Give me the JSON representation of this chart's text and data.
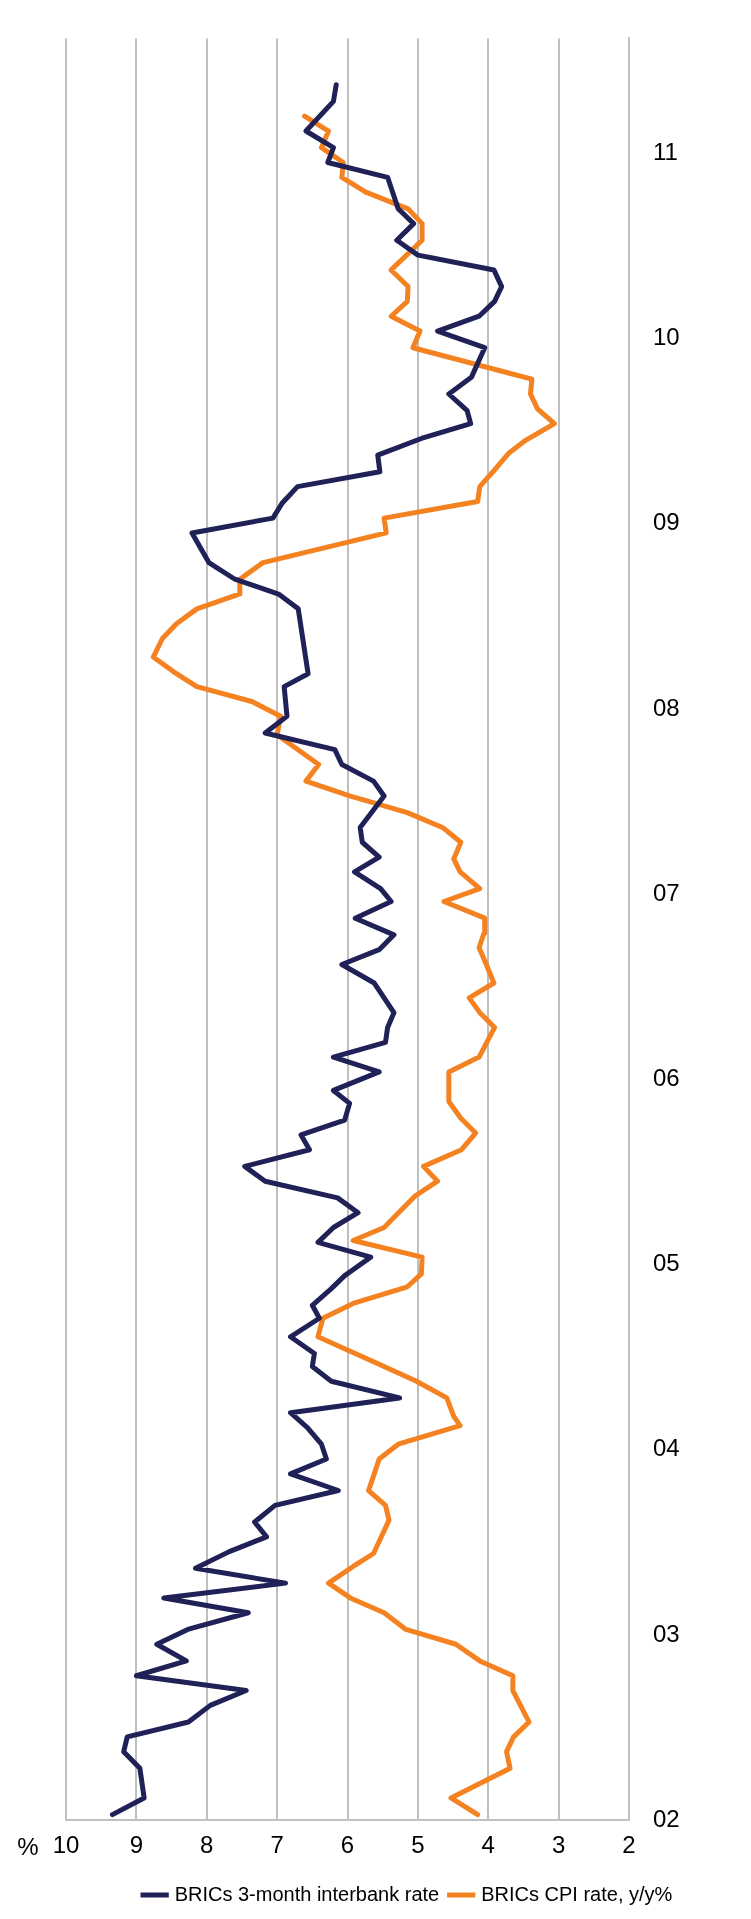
{
  "chart_data": {
    "type": "line",
    "xlabel": "%",
    "ylim": [
      2002,
      2011.62
    ],
    "xlim": [
      10,
      2
    ],
    "yticks": [
      {
        "value": 2002,
        "label": "02"
      },
      {
        "value": 2003,
        "label": "03"
      },
      {
        "value": 2004,
        "label": "04"
      },
      {
        "value": 2005,
        "label": "05"
      },
      {
        "value": 2006,
        "label": "06"
      },
      {
        "value": 2007,
        "label": "07"
      },
      {
        "value": 2008,
        "label": "08"
      },
      {
        "value": 2009,
        "label": "09"
      },
      {
        "value": 2010,
        "label": "10"
      },
      {
        "value": 2011,
        "label": "11"
      }
    ],
    "xticks": [
      10,
      9,
      8,
      7,
      6,
      5,
      4,
      3,
      2
    ],
    "grid": "x",
    "legend": "bottom",
    "marker": "none",
    "series": [
      {
        "name": "BRICs 3-month interbank rate",
        "color": "#1f2157",
        "values": [
          2002.03,
          2002.12,
          2002.28,
          2002.37,
          2002.45,
          2002.53,
          2002.62,
          2002.7,
          2002.78,
          2002.86,
          2002.95,
          2003.03,
          2003.12,
          2003.2,
          2003.28,
          2003.36,
          2003.45,
          2003.53,
          2003.61,
          2003.7,
          2003.78,
          2003.87,
          2003.95,
          2004.03,
          2004.12,
          2004.2,
          2004.28,
          2004.37,
          2004.45,
          2004.52,
          2004.61,
          2004.71,
          2004.78,
          2004.87,
          2004.94,
          2005.04,
          2005.12,
          2005.2,
          2005.28,
          2005.36,
          2005.45,
          2005.53,
          2005.62,
          2005.7,
          2005.78,
          2005.87,
          2005.94,
          2006.04,
          2006.12,
          2006.2,
          2006.28,
          2006.36,
          2006.52,
          2006.62,
          2006.7,
          2006.78,
          2006.87,
          2006.96,
          2007.03,
          2007.12,
          2007.2,
          2007.28,
          2007.36,
          2007.53,
          2007.61,
          2007.7,
          2007.78,
          2007.87,
          2007.96,
          2008.12,
          2008.19,
          2008.54,
          2008.62,
          2008.7,
          2008.79,
          2008.95,
          2009.03,
          2009.11,
          2009.2,
          2009.28,
          2009.37,
          2009.46,
          2009.54,
          2009.61,
          2009.7,
          2009.79,
          2009.95,
          2010.04,
          2010.12,
          2010.2,
          2010.28,
          2010.37,
          2010.45,
          2010.53,
          2010.62,
          2010.7,
          2010.87,
          2010.95,
          2011.03,
          2011.12,
          2011.28,
          2011.37
        ],
        "x": [
          9.34,
          8.89,
          8.95,
          9.18,
          9.13,
          8.26,
          7.95,
          7.44,
          9.0,
          8.29,
          8.71,
          8.27,
          7.41,
          8.61,
          6.88,
          8.16,
          7.68,
          7.15,
          7.32,
          7.03,
          6.13,
          6.81,
          6.3,
          6.37,
          6.57,
          6.81,
          5.26,
          6.23,
          6.5,
          6.47,
          6.81,
          6.4,
          6.5,
          6.23,
          6.04,
          5.67,
          6.42,
          6.2,
          5.85,
          6.14,
          7.17,
          7.46,
          6.54,
          6.66,
          6.04,
          5.97,
          6.2,
          5.55,
          6.2,
          5.46,
          5.43,
          5.34,
          5.62,
          6.08,
          5.55,
          5.34,
          5.89,
          5.38,
          5.53,
          5.9,
          5.55,
          5.79,
          5.82,
          5.48,
          5.63,
          6.08,
          6.18,
          7.17,
          6.86,
          6.9,
          6.56,
          6.7,
          6.98,
          7.6,
          7.97,
          8.21,
          7.06,
          6.93,
          6.71,
          5.54,
          5.57,
          4.95,
          4.25,
          4.3,
          4.56,
          4.24,
          4.05,
          4.72,
          4.13,
          3.91,
          3.81,
          3.92,
          5.0,
          5.3,
          5.06,
          5.28,
          5.43,
          6.28,
          6.2,
          6.59,
          6.2,
          6.16
        ]
      },
      {
        "name": "BRICs CPI rate, y/y%",
        "color": "#f58220",
        "values": [
          2002.03,
          2002.12,
          2002.28,
          2002.37,
          2002.45,
          2002.53,
          2002.7,
          2002.78,
          2002.86,
          2002.95,
          2003.03,
          2003.12,
          2003.2,
          2003.28,
          2003.37,
          2003.44,
          2003.62,
          2003.7,
          2003.78,
          2003.95,
          2004.03,
          2004.13,
          2004.18,
          2004.28,
          2004.37,
          2004.45,
          2004.61,
          2004.71,
          2004.79,
          2004.88,
          2004.95,
          2005.04,
          2005.13,
          2005.2,
          2005.37,
          2005.45,
          2005.53,
          2005.62,
          2005.71,
          2005.79,
          2005.88,
          2006.04,
          2006.12,
          2006.28,
          2006.36,
          2006.44,
          2006.52,
          2006.64,
          2006.71,
          2006.79,
          2006.87,
          2006.96,
          2007.03,
          2007.12,
          2007.19,
          2007.28,
          2007.36,
          2007.44,
          2007.53,
          2007.61,
          2007.7,
          2007.86,
          2007.96,
          2008.04,
          2008.12,
          2008.2,
          2008.28,
          2008.38,
          2008.46,
          2008.54,
          2008.62,
          2008.7,
          2008.79,
          2008.95,
          2009.03,
          2009.12,
          2009.2,
          2009.29,
          2009.38,
          2009.45,
          2009.54,
          2009.62,
          2009.7,
          2009.78,
          2009.95,
          2010.04,
          2010.12,
          2010.2,
          2010.28,
          2010.37,
          2010.53,
          2010.62,
          2010.7,
          2010.79,
          2010.87,
          2010.95,
          2011.03,
          2011.12,
          2011.2
        ],
        "x": [
          4.15,
          4.53,
          3.69,
          3.74,
          3.64,
          3.42,
          3.65,
          3.65,
          4.12,
          4.46,
          5.17,
          5.48,
          5.96,
          6.27,
          5.92,
          5.63,
          5.41,
          5.46,
          5.7,
          5.55,
          5.28,
          4.4,
          4.49,
          4.59,
          5.02,
          5.48,
          6.42,
          6.35,
          5.92,
          5.15,
          4.95,
          4.94,
          5.92,
          5.48,
          5.04,
          4.72,
          4.92,
          4.38,
          4.18,
          4.39,
          4.56,
          4.56,
          4.13,
          3.91,
          4.12,
          4.27,
          3.92,
          4.05,
          4.13,
          4.06,
          4.05,
          4.63,
          4.12,
          4.4,
          4.49,
          4.39,
          4.65,
          5.15,
          5.97,
          6.59,
          6.41,
          7.0,
          6.95,
          7.36,
          8.14,
          8.47,
          8.76,
          8.63,
          8.43,
          8.14,
          7.54,
          7.53,
          7.2,
          5.45,
          5.48,
          4.15,
          4.12,
          3.91,
          3.71,
          3.47,
          3.06,
          3.3,
          3.4,
          3.38,
          5.07,
          4.97,
          5.38,
          5.15,
          5.14,
          5.38,
          4.94,
          4.94,
          5.14,
          5.74,
          6.08,
          6.06,
          6.37,
          6.27,
          6.61
        ]
      }
    ]
  }
}
